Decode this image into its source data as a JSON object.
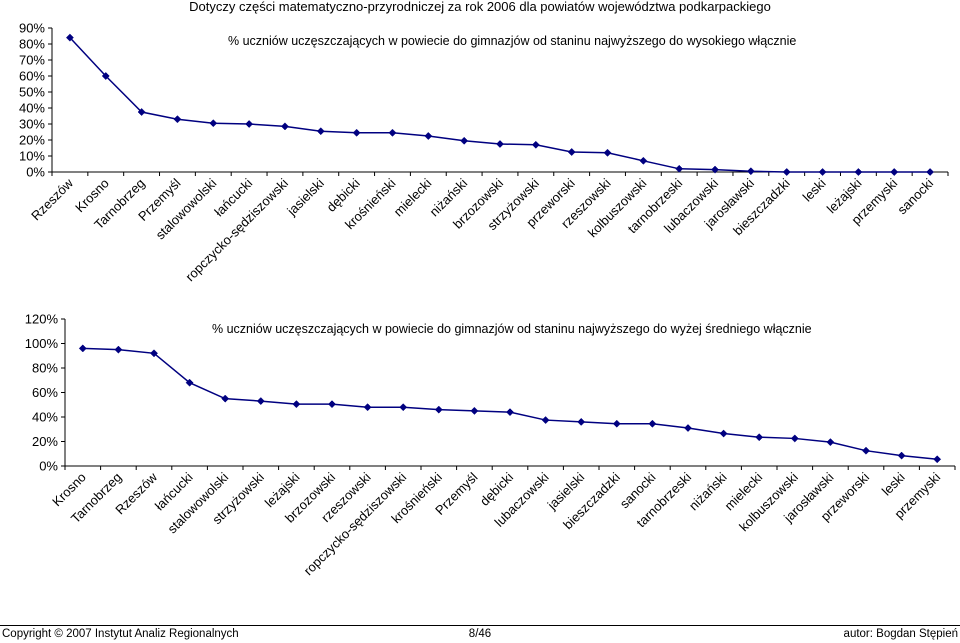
{
  "page": {
    "title": "Dotyczy części matematyczno-przyrodniczej za rok 2006 dla powiatów województwa podkarpackiego"
  },
  "footer": {
    "copyright": "Copyright © 2007 Instytut Analiz Regionalnych",
    "page_number": "8/46",
    "author": "autor: Bogdan Stępień"
  },
  "chart_data": [
    {
      "type": "line",
      "series_label": "% uczniów uczęszczających w powiecie do gimnazjów od staninu najwyższego do wysokiego włącznie",
      "categories": [
        "Rzeszów",
        "Krosno",
        "Tarnobrzeg",
        "Przemyśl",
        "stalowowolski",
        "łańcucki",
        "ropczycko-sędziszowski",
        "jasielski",
        "dębicki",
        "krośnieński",
        "mielecki",
        "niżański",
        "brzozowski",
        "strzyżowski",
        "przeworski",
        "rzeszowski",
        "kolbuszowski",
        "tarnobrzeski",
        "lubaczowski",
        "jarosławski",
        "bieszczadzki",
        "leski",
        "leżajski",
        "przemyski",
        "sanocki"
      ],
      "values": [
        84,
        60,
        37.5,
        33,
        30.5,
        30,
        28.5,
        25.5,
        24.5,
        24.5,
        22.5,
        19.5,
        17.5,
        17,
        12.5,
        12,
        7,
        2,
        1.5,
        0.5,
        0,
        0,
        0,
        0,
        0
      ],
      "ylim": [
        0,
        90
      ],
      "yticks": [
        "0%",
        "10%",
        "20%",
        "30%",
        "40%",
        "50%",
        "60%",
        "70%",
        "80%",
        "90%"
      ],
      "grid": false,
      "color": "#000080"
    },
    {
      "type": "line",
      "series_label": "% uczniów uczęszczających w powiecie do gimnazjów od staninu najwyższego do wyżej średniego włącznie",
      "categories": [
        "Krosno",
        "Tarnobrzeg",
        "Rzeszów",
        "łańcucki",
        "stalowowolski",
        "strzyżowski",
        "leżajski",
        "brzozowski",
        "rzeszowski",
        "ropczycko-sędziszowski",
        "krośnieński",
        "Przemyśl",
        "dębicki",
        "lubaczowski",
        "jasielski",
        "bieszczadzki",
        "sanocki",
        "tarnobrzeski",
        "niżański",
        "mielecki",
        "kolbuszowski",
        "jarosławski",
        "przeworski",
        "leski",
        "przemyski"
      ],
      "values": [
        96,
        95,
        92,
        68,
        55,
        53,
        50.5,
        50.5,
        48,
        48,
        46,
        45,
        44,
        37.5,
        36,
        34.5,
        34.5,
        31,
        26.5,
        23.5,
        22.5,
        19.5,
        12.5,
        8.5,
        5.5
      ],
      "ylim": [
        0,
        120
      ],
      "yticks": [
        "0%",
        "20%",
        "40%",
        "60%",
        "80%",
        "100%",
        "120%"
      ],
      "grid": false,
      "color": "#000080"
    }
  ]
}
